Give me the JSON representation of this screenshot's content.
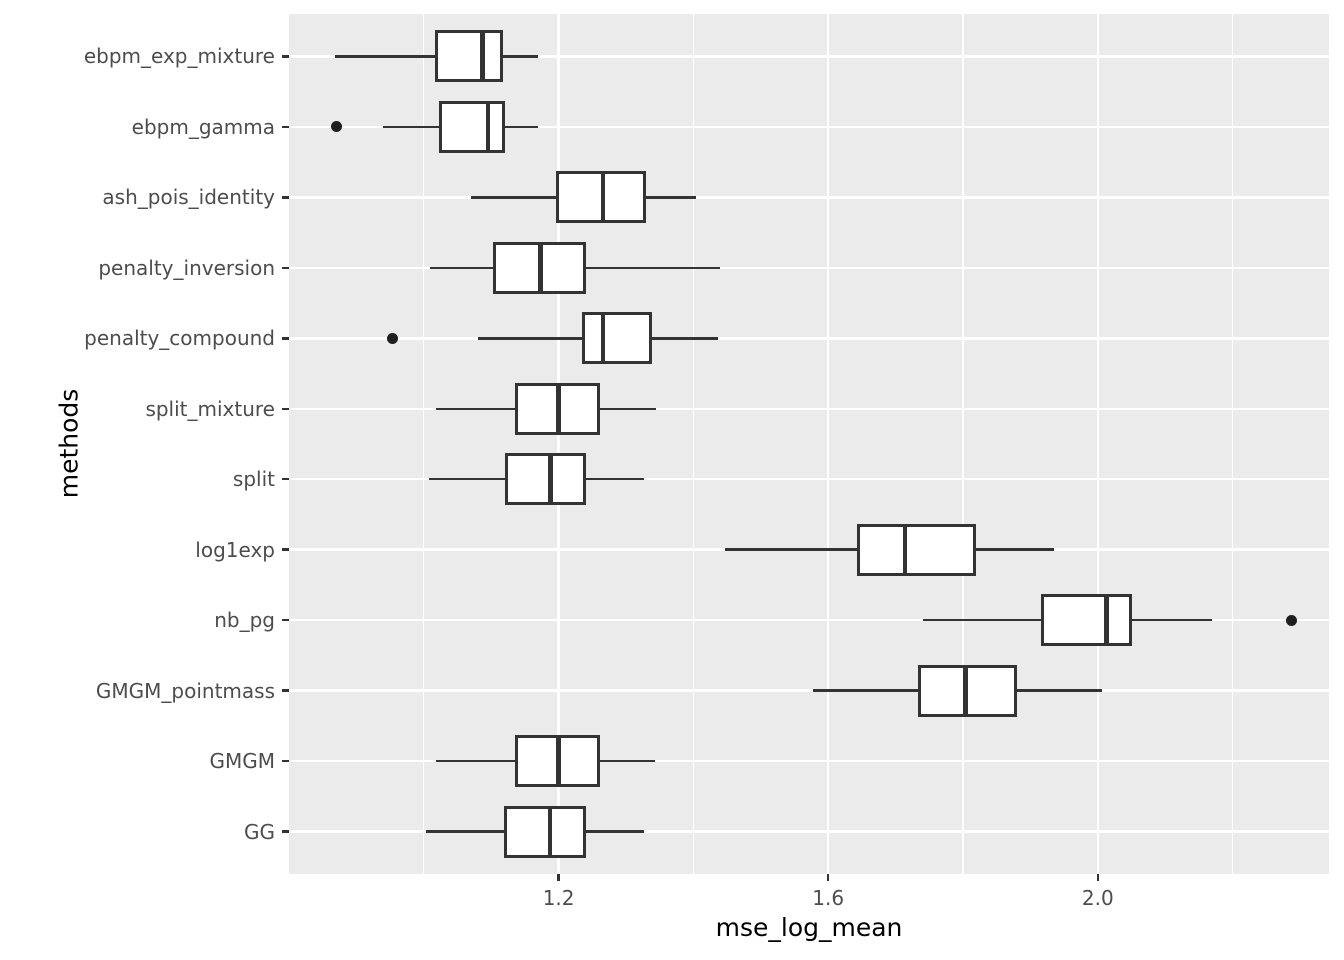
{
  "figure": {
    "kind": "ggplot-boxplot",
    "x_axis_title": "mse_log_mean",
    "y_axis_title": "methods"
  },
  "colors": {
    "panel_background": "#EBEBEB",
    "gridline": "#FFFFFF",
    "box_border": "#333333",
    "box_fill": "#FFFFFF",
    "median_line": "#333333",
    "whisker": "#333333",
    "outlier": "#1F1F1F",
    "tick_mark": "#333333",
    "tick_text": "#4D4D4D",
    "axis_title_text": "#000000"
  },
  "chart_data": {
    "type": "boxplot",
    "orientation": "horizontal",
    "title": "",
    "xlabel": "mse_log_mean",
    "ylabel": "methods",
    "xlim": [
      0.8,
      2.343
    ],
    "x_major_ticks": [
      1.2,
      1.6,
      2.0
    ],
    "x_major_tick_labels": [
      "1.2",
      "1.6",
      "2.0"
    ],
    "x_minor_gridlines": [
      1.0,
      1.4,
      1.8,
      2.2
    ],
    "grid": "major-and-minor-x, major-y",
    "legend": "none",
    "categories_top_to_bottom": [
      {
        "label": "ebpm_exp_mixture",
        "whisker_low": 0.868,
        "q1": 1.016,
        "median": 1.087,
        "q3": 1.117,
        "whisker_high": 1.169,
        "outliers": []
      },
      {
        "label": "ebpm_gamma",
        "whisker_low": 0.939,
        "q1": 1.022,
        "median": 1.095,
        "q3": 1.121,
        "whisker_high": 1.169,
        "outliers": [
          0.871
        ]
      },
      {
        "label": "ash_pois_identity",
        "whisker_low": 1.07,
        "q1": 1.196,
        "median": 1.266,
        "q3": 1.329,
        "whisker_high": 1.404,
        "outliers": []
      },
      {
        "label": "penalty_inversion",
        "whisker_low": 1.009,
        "q1": 1.103,
        "median": 1.173,
        "q3": 1.241,
        "whisker_high": 1.439,
        "outliers": []
      },
      {
        "label": "penalty_compound",
        "whisker_low": 1.08,
        "q1": 1.234,
        "median": 1.266,
        "q3": 1.339,
        "whisker_high": 1.437,
        "outliers": [
          0.954
        ]
      },
      {
        "label": "split_mixture",
        "whisker_low": 1.018,
        "q1": 1.135,
        "median": 1.2,
        "q3": 1.261,
        "whisker_high": 1.345,
        "outliers": []
      },
      {
        "label": "split",
        "whisker_low": 1.007,
        "q1": 1.12,
        "median": 1.188,
        "q3": 1.241,
        "whisker_high": 1.326,
        "outliers": []
      },
      {
        "label": "log1exp",
        "whisker_low": 1.447,
        "q1": 1.643,
        "median": 1.714,
        "q3": 1.819,
        "whisker_high": 1.935,
        "outliers": []
      },
      {
        "label": "nb_pg",
        "whisker_low": 1.741,
        "q1": 1.916,
        "median": 2.013,
        "q3": 2.05,
        "whisker_high": 2.169,
        "outliers": [
          2.287
        ]
      },
      {
        "label": "GMGM_pointmass",
        "whisker_low": 1.578,
        "q1": 1.733,
        "median": 1.804,
        "q3": 1.88,
        "whisker_high": 2.006,
        "outliers": []
      },
      {
        "label": "GMGM",
        "whisker_low": 1.018,
        "q1": 1.135,
        "median": 1.2,
        "q3": 1.261,
        "whisker_high": 1.343,
        "outliers": []
      },
      {
        "label": "GG",
        "whisker_low": 1.004,
        "q1": 1.119,
        "median": 1.187,
        "q3": 1.241,
        "whisker_high": 1.326,
        "outliers": []
      }
    ]
  }
}
